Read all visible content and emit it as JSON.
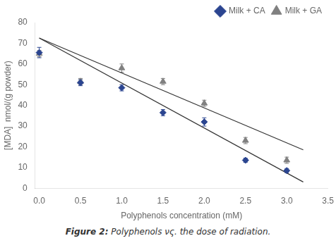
{
  "chart_data": {
    "type": "scatter",
    "xlabel": "Polyphenols concentration (mM)",
    "ylabel": "[MDA]  nmol/(g powder)",
    "annotations": [
      "Figure 2:",
      "Polyphenols νς. the dose of radiation."
    ],
    "xlim": [
      -0.05,
      3.5
    ],
    "ylim": [
      0,
      80
    ],
    "xticks": [
      {
        "value": 0,
        "label": "0.0"
      },
      0.5,
      {
        "value": 1.0,
        "label": "1.0"
      },
      1.5,
      {
        "value": 2.0,
        "label": "2.0"
      },
      2.5,
      {
        "value": 3.0,
        "label": "3.0"
      },
      3.5
    ],
    "yticks": [
      0,
      10,
      20,
      30,
      40,
      50,
      60,
      70,
      80
    ],
    "grid": false,
    "legend": "upper right",
    "series": [
      {
        "type": "line",
        "color": "#333333",
        "line_style": "solid",
        "x": [
          0,
          3.2
        ],
        "values": [
          72.5,
          3.0
        ]
      },
      {
        "type": "line",
        "color": "#333333",
        "line_style": "solid",
        "x": [
          0,
          3.2
        ],
        "values": [
          72.5,
          18.5
        ]
      },
      {
        "type": "scatter",
        "name": "Milk + CA",
        "color": "#2B4590",
        "marker": "diamond",
        "x": [
          0,
          0.5,
          1.0,
          1.5,
          2.0,
          2.5,
          3.0
        ],
        "values": [
          65.5,
          51.0,
          48.5,
          36.5,
          32.0,
          13.5,
          8.5
        ],
        "yerr": [
          2.5,
          1.5,
          1.5,
          1.5,
          2.0,
          1.0,
          1.0
        ]
      },
      {
        "type": "scatter",
        "name": "Milk + GA",
        "color": "#808080",
        "marker": "triangle",
        "x": [
          0,
          0.5,
          1.0,
          1.5,
          2.0,
          2.5,
          3.0
        ],
        "values": [
          65.0,
          51.5,
          58.0,
          51.5,
          41.0,
          23.0,
          13.5
        ],
        "yerr": [
          1.5,
          1.5,
          2.0,
          1.5,
          1.5,
          1.5,
          1.5
        ]
      }
    ]
  }
}
